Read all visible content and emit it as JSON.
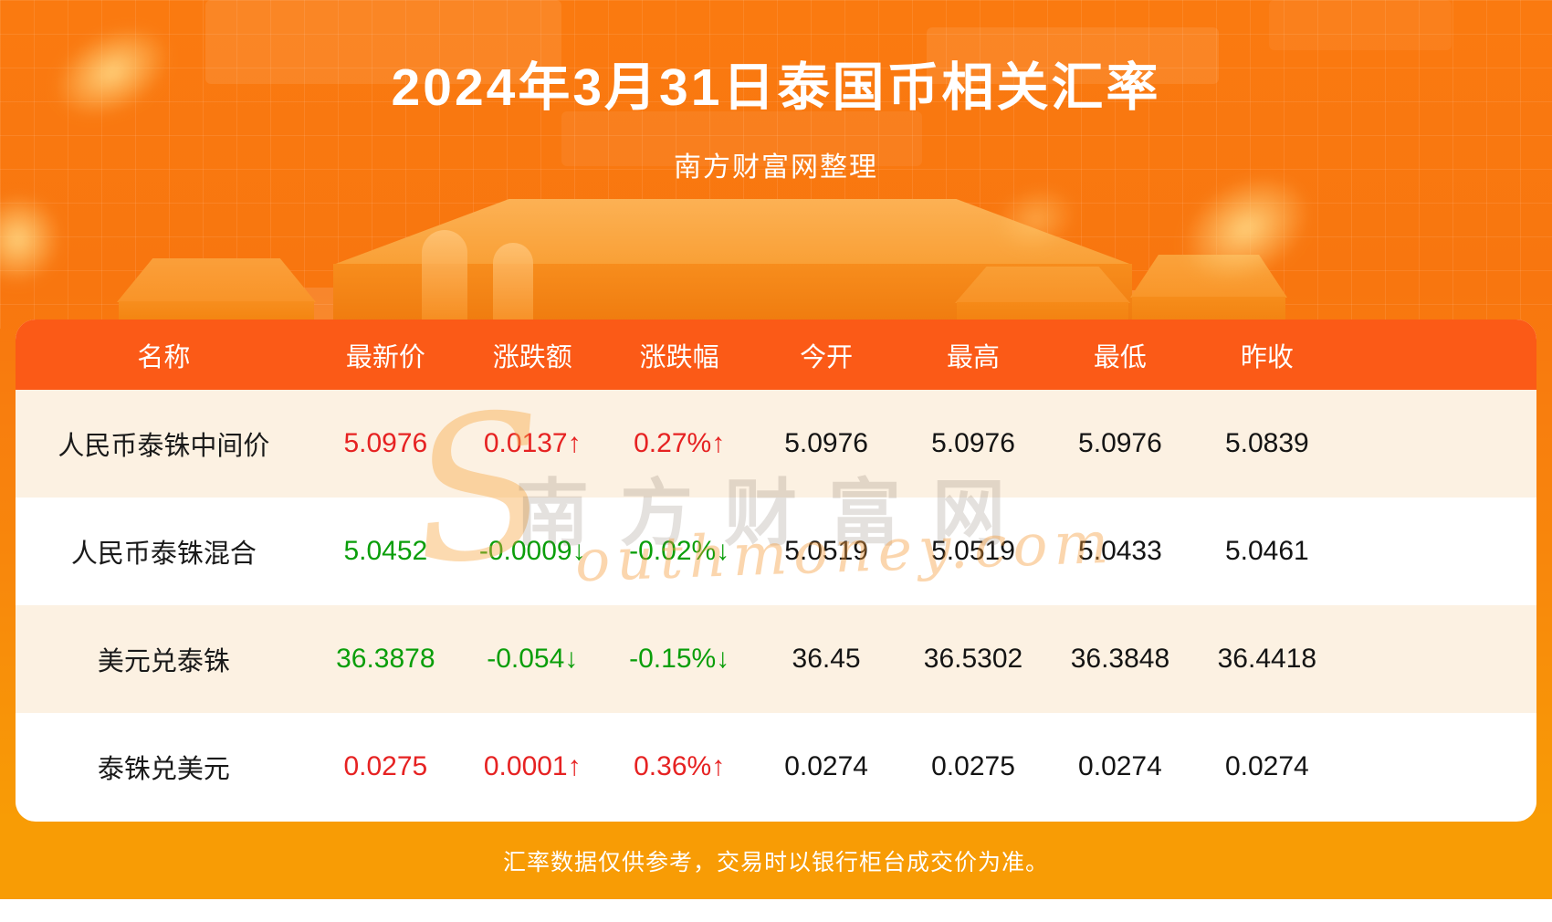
{
  "title": "2024年3月31日泰国币相关汇率",
  "subtitle": "南方财富网整理",
  "watermark": {
    "cn": "南方财富网",
    "swoosh": "S",
    "en": "outhmoney.com"
  },
  "footer_note": "汇率数据仅供参考，交易时以银行柜台成交价为准。",
  "colors": {
    "background_orange": "#f8760f",
    "header_orange": "#fb5a17",
    "footer_amber": "#f89c05",
    "row_cream": "#fcf1e2",
    "up_red": "#e62222",
    "down_green": "#0a9e0a",
    "text_dark": "#141414"
  },
  "chart_data": {
    "type": "table",
    "title": "2024年3月31日泰国币相关汇率",
    "columns": [
      "名称",
      "最新价",
      "涨跌额",
      "涨跌幅",
      "今开",
      "最高",
      "最低",
      "昨收"
    ],
    "rows": [
      {
        "name": "人民币泰铢中间价",
        "latest": "5.0976",
        "change": "0.0137↑",
        "change_pct": "0.27%↑",
        "open": "5.0976",
        "high": "5.0976",
        "low": "5.0976",
        "prev_close": "5.0839",
        "trend": "up"
      },
      {
        "name": "人民币泰铢混合",
        "latest": "5.0452",
        "change": "-0.0009↓",
        "change_pct": "-0.02%↓",
        "open": "5.0519",
        "high": "5.0519",
        "low": "5.0433",
        "prev_close": "5.0461",
        "trend": "down"
      },
      {
        "name": "美元兑泰铢",
        "latest": "36.3878",
        "change": "-0.054↓",
        "change_pct": "-0.15%↓",
        "open": "36.45",
        "high": "36.5302",
        "low": "36.3848",
        "prev_close": "36.4418",
        "trend": "down"
      },
      {
        "name": "泰铢兑美元",
        "latest": "0.0275",
        "change": "0.0001↑",
        "change_pct": "0.36%↑",
        "open": "0.0274",
        "high": "0.0275",
        "low": "0.0274",
        "prev_close": "0.0274",
        "trend": "up"
      }
    ]
  }
}
